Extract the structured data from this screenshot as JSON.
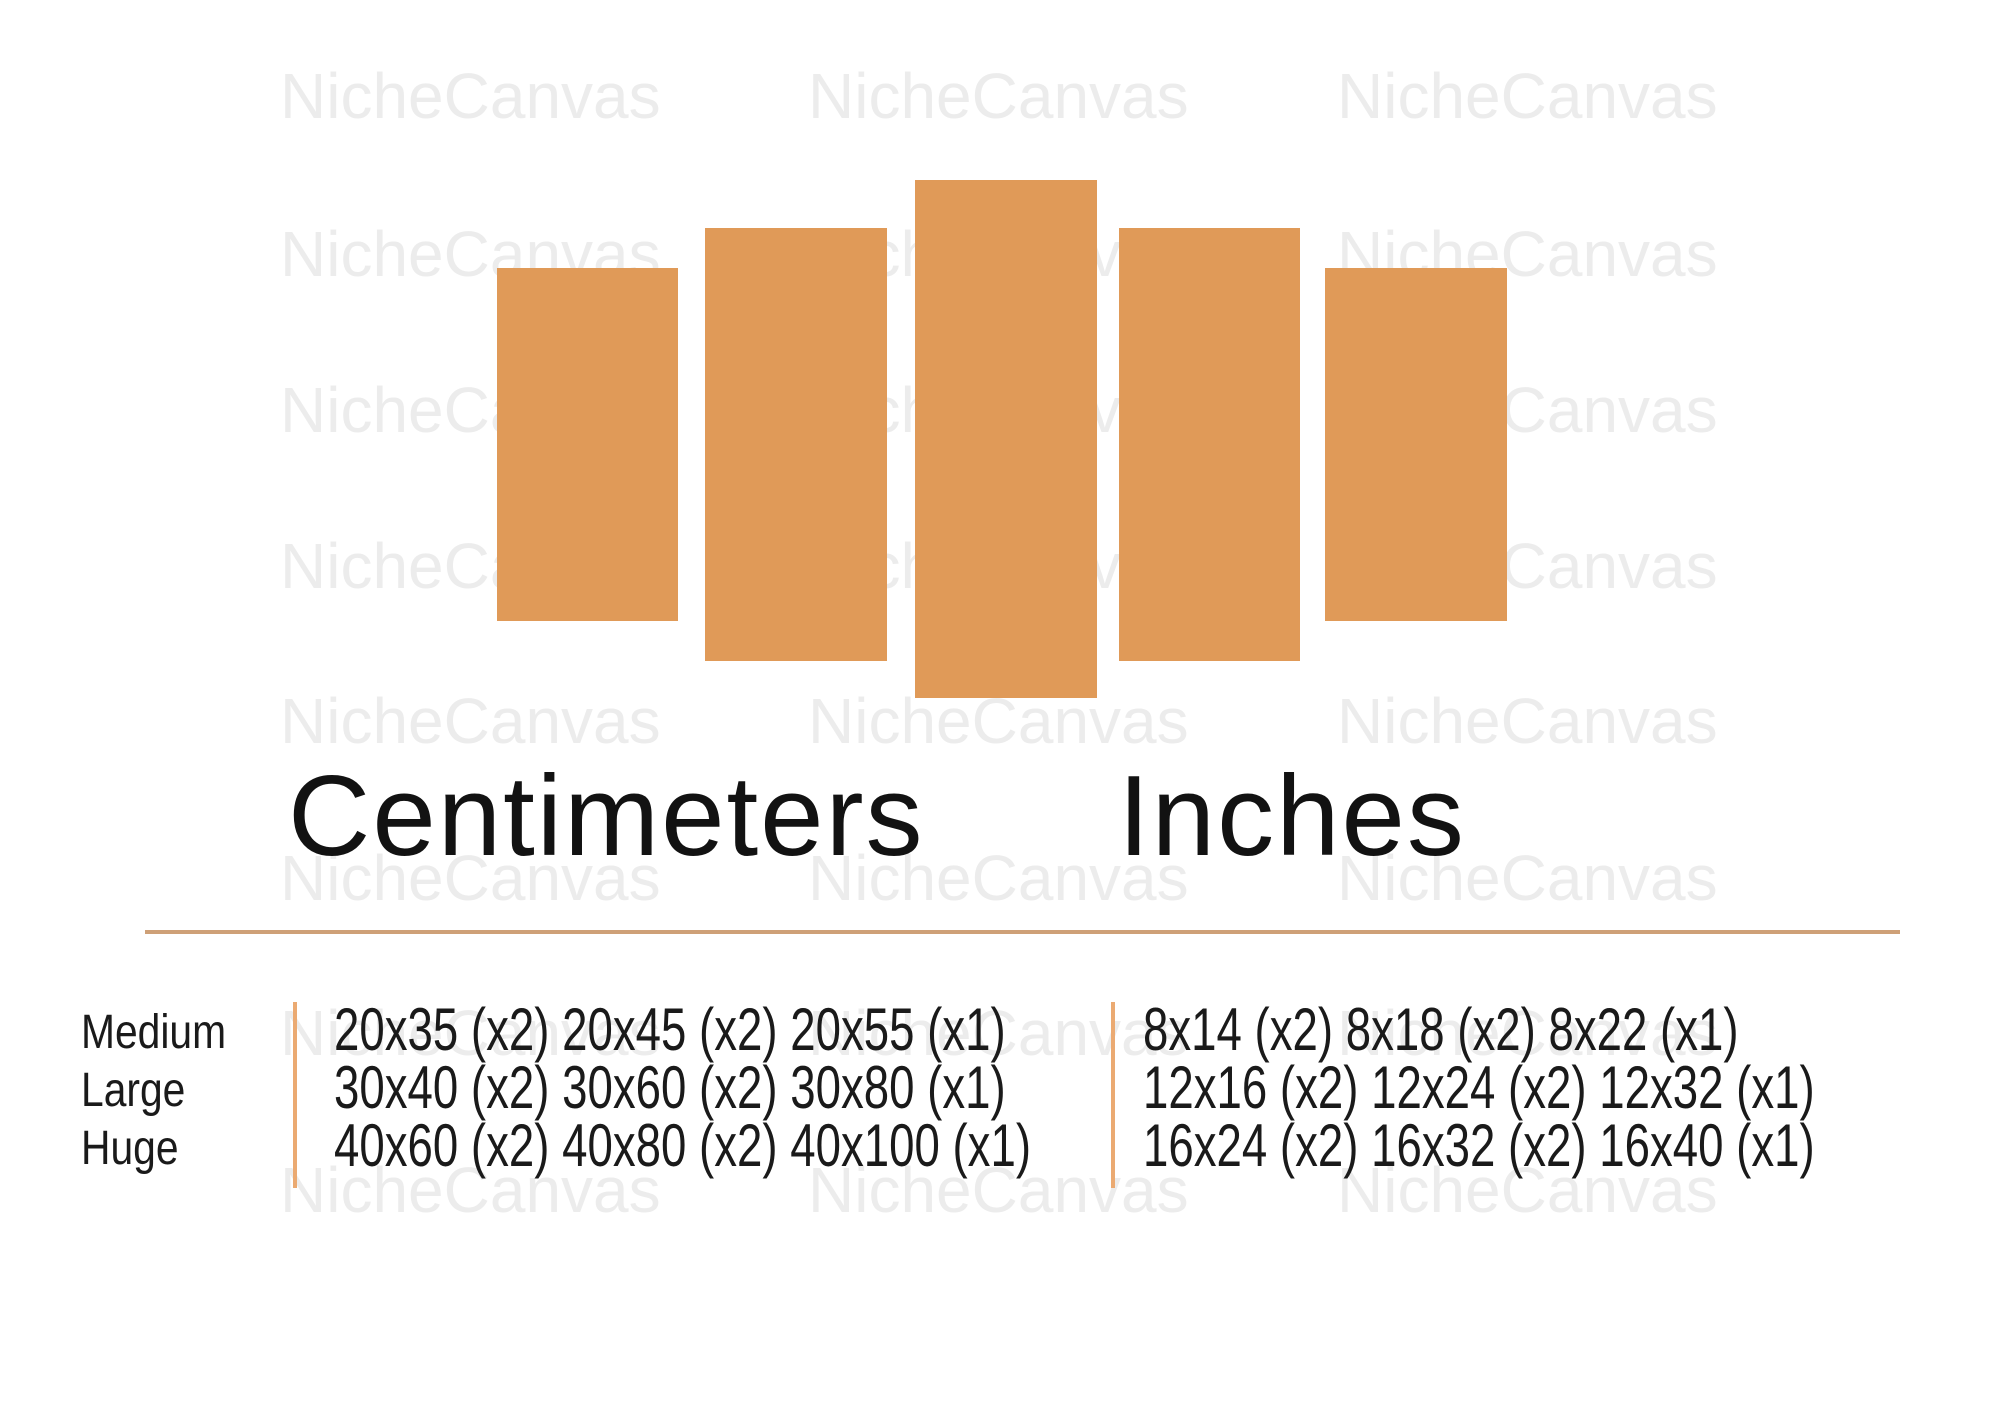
{
  "watermark": {
    "text": "NicheCanvas"
  },
  "headings": {
    "centimeters": "Centimeters",
    "inches": "Inches"
  },
  "size_table": {
    "rows": [
      {
        "label": "Medium",
        "centimeters": "20x35 (x2) 20x45 (x2) 20x55 (x1)",
        "inches": "8x14 (x2) 8x18 (x2) 8x22 (x1)"
      },
      {
        "label": "Large",
        "centimeters": "30x40 (x2) 30x60 (x2) 30x80 (x1)",
        "inches": "12x16 (x2) 12x24 (x2) 12x32 (x1)"
      },
      {
        "label": "Huge",
        "centimeters": "40x60 (x2) 40x80 (x2) 40x100 (x1)",
        "inches": "16x24 (x2) 16x32 (x2) 16x40 (x1)"
      }
    ]
  },
  "panels": {
    "count": 5
  },
  "colors": {
    "panel_orange": "#E09A58",
    "rule_tan": "#CEA077",
    "divider_orange": "#EBAA72",
    "heading_text": "#121212",
    "table_text": "#1A1A1A",
    "watermark_gray": "#ECECEC",
    "background": "#FFFFFF"
  }
}
